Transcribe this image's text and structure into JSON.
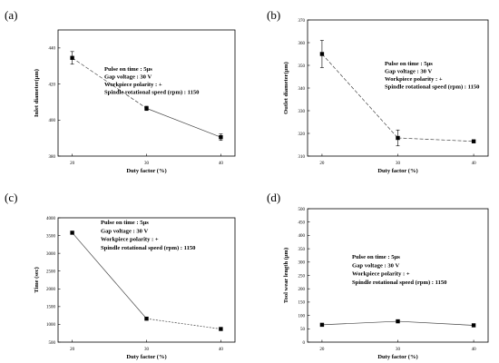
{
  "chart_data": [
    {
      "type": "line",
      "panel_label": "(a)",
      "categories": [
        "20",
        "30",
        "40"
      ],
      "x": [
        20,
        30,
        40
      ],
      "series": [
        {
          "values": [
            434.5,
            406.5,
            390.5
          ],
          "errors": [
            3.5,
            1.2,
            1.8
          ]
        }
      ],
      "xlabel": "Duty factor (%)",
      "ylabel": "Inlet diameter(μm)",
      "ylim": [
        380,
        450
      ],
      "yticks": [
        "380",
        "400",
        "420",
        "440"
      ],
      "annotations": [
        "Pulse on time : 5μs",
        "Gap voltage : 30 V",
        "Workpiece polarity : +",
        "Spindle rotational speed (rpm) : 1150"
      ],
      "grid": false
    },
    {
      "type": "line",
      "panel_label": "(b)",
      "categories": [
        "20",
        "30",
        "40"
      ],
      "x": [
        20,
        30,
        40
      ],
      "series": [
        {
          "values": [
            355,
            318,
            316.5
          ],
          "errors": [
            6,
            3.5,
            0.5
          ]
        }
      ],
      "xlabel": "Duty factor (%)",
      "ylabel": "Outlet diameter(μm)",
      "ylim": [
        310,
        370
      ],
      "yticks": [
        "310",
        "320",
        "330",
        "340",
        "350",
        "360",
        "370"
      ],
      "annotations": [
        "Pulse on time : 5μs",
        "Gap voltage : 30 V",
        "Workpiece polarity : +",
        "Spindle rotational speed (rpm) : 1150"
      ],
      "grid": false
    },
    {
      "type": "line",
      "panel_label": "(c)",
      "categories": [
        "20",
        "30",
        "40"
      ],
      "x": [
        20,
        30,
        40
      ],
      "series": [
        {
          "values": [
            3580,
            1160,
            870
          ],
          "errors": [
            0,
            0,
            0
          ]
        }
      ],
      "xlabel": "Duty factor (%)",
      "ylabel": "Time (sec)",
      "ylim": [
        500,
        4000
      ],
      "yticks": [
        "500",
        "1000",
        "1500",
        "2000",
        "2500",
        "3000",
        "3500",
        "4000"
      ],
      "annotations": [
        "Pulse on time : 5μs",
        "Gap voltage : 30 V",
        "Workpiece polarity : +",
        "Spindle rotational speed (rpm) : 1150"
      ],
      "grid": false
    },
    {
      "type": "line",
      "panel_label": "(d)",
      "categories": [
        "20",
        "30",
        "40"
      ],
      "x": [
        20,
        30,
        40
      ],
      "series": [
        {
          "values": [
            65,
            78,
            63
          ],
          "errors": [
            0,
            0,
            0
          ]
        }
      ],
      "xlabel": "Duty factor (%)",
      "ylabel": "Tool wear length (μm)",
      "ylim": [
        0,
        500
      ],
      "yticks": [
        "0",
        "50",
        "100",
        "150",
        "200",
        "250",
        "300",
        "350",
        "400",
        "450",
        "500"
      ],
      "annotations": [
        "Pulse on time : 5μs",
        "Gap voltage : 30 V",
        "Workpiece polarity : +",
        "Spindle rotational speed (rpm) : 1150"
      ],
      "grid": false
    }
  ]
}
